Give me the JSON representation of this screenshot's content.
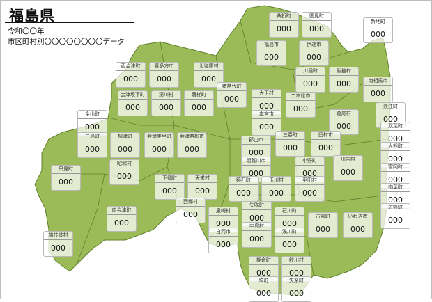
{
  "header": {
    "title": "福島県",
    "year": "令和〇〇年",
    "subtitle": "市区町村別〇〇〇〇〇〇〇〇データ"
  },
  "map": {
    "fill_color": "#9bbb59",
    "border_color": "#5f7f2a"
  },
  "municipalities": [
    {
      "name": "桑折町",
      "value": "000"
    },
    {
      "name": "国見町",
      "value": "000"
    },
    {
      "name": "新地町",
      "value": "000"
    },
    {
      "name": "福島市",
      "value": "000"
    },
    {
      "name": "伊達市",
      "value": "000"
    },
    {
      "name": "西会津町",
      "value": "000"
    },
    {
      "name": "喜多方市",
      "value": "000"
    },
    {
      "name": "北塩原村",
      "value": "000"
    },
    {
      "name": "川俣町",
      "value": "000"
    },
    {
      "name": "飯舘村",
      "value": "000"
    },
    {
      "name": "南相馬市",
      "value": "000"
    },
    {
      "name": "猪苗代町",
      "value": "000"
    },
    {
      "name": "会津坂下町",
      "value": "000"
    },
    {
      "name": "湯川村",
      "value": "000"
    },
    {
      "name": "磐梯町",
      "value": "000"
    },
    {
      "name": "大玉村",
      "value": "000"
    },
    {
      "name": "二本松市",
      "value": "000"
    },
    {
      "name": "浪江町",
      "value": "000"
    },
    {
      "name": "金山町",
      "value": "000"
    },
    {
      "name": "本宮市",
      "value": "000"
    },
    {
      "name": "葛尾村",
      "value": "000"
    },
    {
      "name": "双葉町",
      "value": "000"
    },
    {
      "name": "三島町",
      "value": "000"
    },
    {
      "name": "柳津町",
      "value": "000"
    },
    {
      "name": "会津美里町",
      "value": "000"
    },
    {
      "name": "会津若松市",
      "value": "000"
    },
    {
      "name": "三春町",
      "value": "000"
    },
    {
      "name": "田村市",
      "value": "000"
    },
    {
      "name": "郡山市",
      "value": "000"
    },
    {
      "name": "大熊町",
      "value": "000"
    },
    {
      "name": "須賀川市",
      "value": "000"
    },
    {
      "name": "小野町",
      "value": "000"
    },
    {
      "name": "川内村",
      "value": "000"
    },
    {
      "name": "富岡町",
      "value": "000"
    },
    {
      "name": "只見町",
      "value": "000"
    },
    {
      "name": "昭和村",
      "value": "000"
    },
    {
      "name": "下郷町",
      "value": "000"
    },
    {
      "name": "天栄村",
      "value": "000"
    },
    {
      "name": "鏡石町",
      "value": "000"
    },
    {
      "name": "玉川村",
      "value": "000"
    },
    {
      "name": "平田村",
      "value": "000"
    },
    {
      "name": "楢葉町",
      "value": "000"
    },
    {
      "name": "西郷村",
      "value": "000"
    },
    {
      "name": "矢吹町",
      "value": "000"
    },
    {
      "name": "泉崎村",
      "value": "000"
    },
    {
      "name": "石川町",
      "value": "000"
    },
    {
      "name": "広野町",
      "value": "000"
    },
    {
      "name": "古殿町",
      "value": "000"
    },
    {
      "name": "いわき市",
      "value": "000"
    },
    {
      "name": "南会津町",
      "value": "000"
    },
    {
      "name": "中島村",
      "value": "000"
    },
    {
      "name": "白河市",
      "value": "000"
    },
    {
      "name": "浅川町",
      "value": "000"
    },
    {
      "name": "檜枝岐村",
      "value": "000"
    },
    {
      "name": "棚倉町",
      "value": "000"
    },
    {
      "name": "鮫川村",
      "value": "000"
    },
    {
      "name": "塙町",
      "value": "000"
    },
    {
      "name": "矢祭町",
      "value": "000"
    }
  ]
}
